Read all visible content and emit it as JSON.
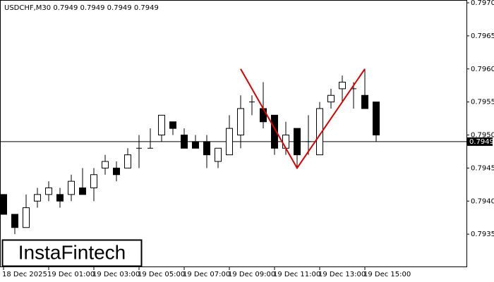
{
  "chart_data": {
    "type": "candlestick",
    "title": "USDCHF,M30  0.7949 0.7949 0.7949 0.7949",
    "watermark": "InstaFintech",
    "categories": [
      "18 Dec 2025",
      null,
      null,
      null,
      "19 Dec 01:00",
      null,
      null,
      null,
      "19 Dec 03:00",
      null,
      null,
      null,
      "19 Dec 05:00",
      null,
      null,
      null,
      "19 Dec 07:00",
      null,
      null,
      null,
      "19 Dec 09:00",
      null,
      null,
      null,
      "19 Dec 11:00",
      null,
      null,
      null,
      "19 Dec 13:00",
      null,
      null,
      null,
      "19 Dec 15:00",
      null
    ],
    "open": [
      0.7941,
      0.7938,
      0.7936,
      0.794,
      0.7941,
      0.7941,
      0.7941,
      0.7942,
      0.7942,
      0.7945,
      0.7945,
      0.7945,
      0.7948,
      0.7948,
      0.795,
      0.7952,
      0.795,
      0.7949,
      0.7949,
      0.7946,
      0.7947,
      0.795,
      0.7955,
      0.7954,
      0.7953,
      0.7948,
      0.7951,
      0.7949,
      0.7947,
      0.7955,
      0.7957,
      0.7957,
      0.7956,
      0.7955
    ],
    "high": [
      0.7941,
      0.7938,
      0.7941,
      0.7942,
      0.7943,
      0.7942,
      0.7944,
      0.7945,
      0.7945,
      0.7947,
      0.7946,
      0.7948,
      0.795,
      0.7951,
      0.7953,
      0.7952,
      0.7951,
      0.795,
      0.795,
      0.7948,
      0.7953,
      0.7956,
      0.7956,
      0.7958,
      0.7953,
      0.7952,
      0.7951,
      0.7953,
      0.7955,
      0.7957,
      0.7959,
      0.7958,
      0.796,
      0.7955
    ],
    "low": [
      0.7938,
      0.7935,
      0.7936,
      0.7939,
      0.794,
      0.7939,
      0.794,
      0.7941,
      0.794,
      0.7944,
      0.7943,
      0.7945,
      0.7945,
      0.7948,
      0.7949,
      0.795,
      0.7948,
      0.7948,
      0.7945,
      0.7945,
      0.7947,
      0.7948,
      0.7953,
      0.7951,
      0.7947,
      0.7947,
      0.7945,
      0.7947,
      0.7947,
      0.7954,
      0.7955,
      0.7954,
      0.7954,
      0.7949
    ],
    "close": [
      0.7938,
      0.7936,
      0.7939,
      0.7941,
      0.7942,
      0.794,
      0.7943,
      0.7941,
      0.7944,
      0.7946,
      0.7944,
      0.7947,
      0.7948,
      0.7948,
      0.7953,
      0.7951,
      0.7948,
      0.7948,
      0.7947,
      0.7948,
      0.7951,
      0.7954,
      0.7955,
      0.7952,
      0.7948,
      0.795,
      0.7947,
      0.7949,
      0.7954,
      0.7956,
      0.7958,
      0.7957,
      0.7954,
      0.795
    ],
    "up_color": "#ffffff",
    "down_color": "#000000",
    "outline_color": "#000000",
    "ylim": [
      0.793,
      0.797
    ],
    "yticks": [
      0.7935,
      {
        "value": 0.794,
        "label": "0.7940"
      },
      0.7945,
      {
        "value": 0.795,
        "label": "0.7950"
      },
      0.7955,
      {
        "value": 0.796,
        "label": "0.7960"
      },
      0.7965,
      {
        "value": 0.797,
        "label": "0.7970"
      }
    ],
    "current_price": 0.7949,
    "pattern": {
      "color": "#e00000",
      "at": [
        21,
        26,
        32
      ],
      "values": [
        0.796,
        0.7945,
        0.796
      ]
    }
  }
}
